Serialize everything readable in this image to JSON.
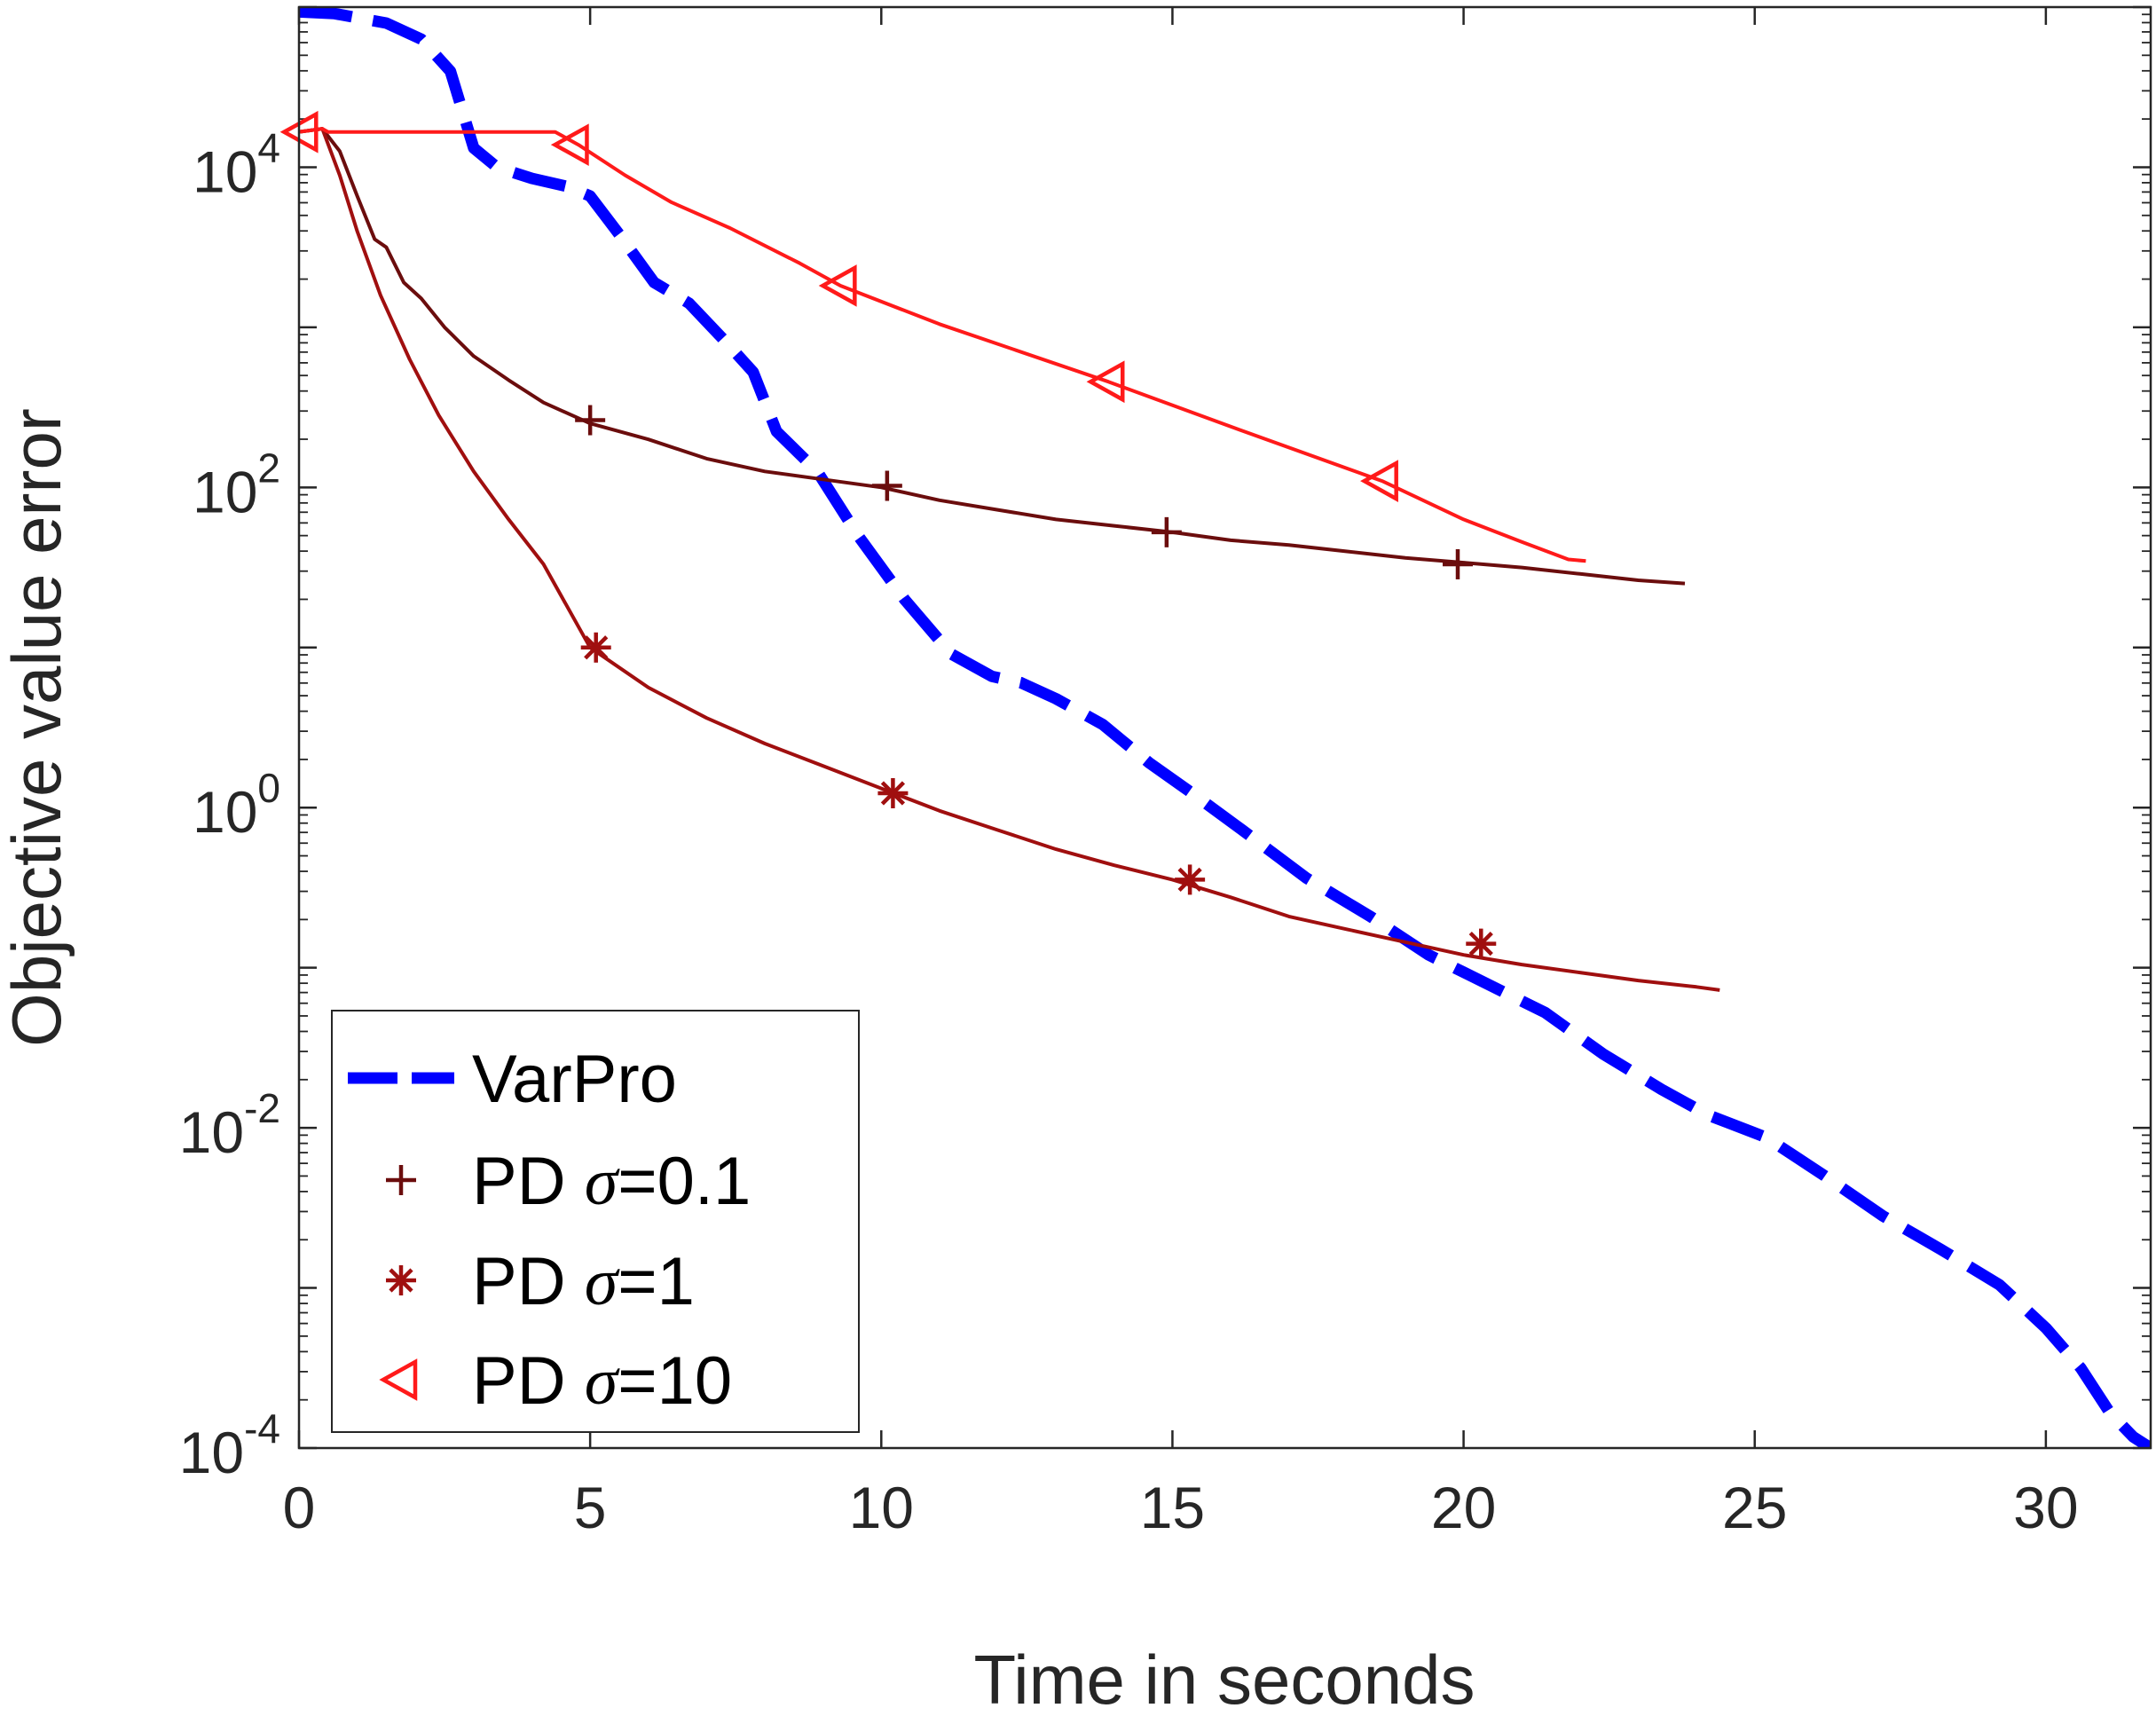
{
  "chart_data": {
    "type": "line",
    "title": "",
    "xlabel": "Time in seconds",
    "ylabel": "Objective value error",
    "xlim": [
      0,
      31.8
    ],
    "ylim_log10": [
      -4,
      5
    ],
    "y_scale": "log",
    "x_ticks": [
      0,
      5,
      10,
      15,
      20,
      25,
      30
    ],
    "x_tick_labels": [
      "0",
      "5",
      "10",
      "15",
      "20",
      "25",
      "30"
    ],
    "y_ticks": [
      {
        "base": "10",
        "exp": "4",
        "value": 4
      },
      {
        "base": "10",
        "exp": "2",
        "value": 2
      },
      {
        "base": "10",
        "exp": "0",
        "value": 0
      },
      {
        "base": "10",
        "exp": "-2",
        "value": -2
      },
      {
        "base": "10",
        "exp": "-4",
        "value": -4
      }
    ],
    "legend_location": "bottom-left",
    "series": [
      {
        "name": "VarPro",
        "color": "#0000ff",
        "style": "dashed",
        "marker": "none",
        "label_prefix": "VarPro",
        "label_sigma": "",
        "label_suffix": "",
        "points": [
          [
            0,
            4.97
          ],
          [
            0.6,
            4.96
          ],
          [
            1.5,
            4.9
          ],
          [
            2.1,
            4.8
          ],
          [
            2.6,
            4.6
          ],
          [
            3,
            4.12
          ],
          [
            3.4,
            4.0
          ],
          [
            4.0,
            3.93
          ],
          [
            4.6,
            3.88
          ],
          [
            5,
            3.82
          ],
          [
            5.5,
            3.58
          ],
          [
            6.1,
            3.28
          ],
          [
            6.7,
            3.15
          ],
          [
            7.3,
            2.92
          ],
          [
            7.8,
            2.72
          ],
          [
            8.2,
            2.35
          ],
          [
            8.9,
            2.1
          ],
          [
            9.6,
            1.7
          ],
          [
            10.4,
            1.3
          ],
          [
            11.2,
            0.96
          ],
          [
            11.9,
            0.82
          ],
          [
            12.4,
            0.78
          ],
          [
            13.0,
            0.68
          ],
          [
            13.8,
            0.52
          ],
          [
            14.6,
            0.28
          ],
          [
            15.3,
            0.1
          ],
          [
            16.2,
            -0.14
          ],
          [
            17.3,
            -0.44
          ],
          [
            18.4,
            -0.68
          ],
          [
            19.4,
            -0.92
          ],
          [
            20.4,
            -1.1
          ],
          [
            21.4,
            -1.28
          ],
          [
            22.4,
            -1.54
          ],
          [
            23.4,
            -1.76
          ],
          [
            24.2,
            -1.92
          ],
          [
            25.2,
            -2.06
          ],
          [
            26.2,
            -2.3
          ],
          [
            27.2,
            -2.55
          ],
          [
            28.2,
            -2.76
          ],
          [
            29.2,
            -2.98
          ],
          [
            30.0,
            -3.25
          ],
          [
            30.6,
            -3.5
          ],
          [
            31.1,
            -3.78
          ],
          [
            31.5,
            -3.93
          ],
          [
            31.8,
            -4.0
          ]
        ]
      },
      {
        "name": "PD σ=0.1",
        "color": "#6b0d0d",
        "style": "solid",
        "marker": "plus",
        "label_prefix": "PD ",
        "label_sigma": "σ",
        "label_suffix": "=0.1",
        "points": [
          [
            0,
            4.22
          ],
          [
            0.4,
            4.24
          ],
          [
            0.7,
            4.1
          ],
          [
            1.0,
            3.82
          ],
          [
            1.3,
            3.55
          ],
          [
            1.5,
            3.5
          ],
          [
            1.8,
            3.28
          ],
          [
            2.1,
            3.18
          ],
          [
            2.5,
            3.0
          ],
          [
            3.0,
            2.82
          ],
          [
            3.6,
            2.67
          ],
          [
            4.2,
            2.53
          ],
          [
            5,
            2.4
          ],
          [
            6,
            2.3
          ],
          [
            7,
            2.18
          ],
          [
            8,
            2.1
          ],
          [
            9,
            2.05
          ],
          [
            10,
            2.0
          ],
          [
            11,
            1.92
          ],
          [
            12,
            1.86
          ],
          [
            13,
            1.8
          ],
          [
            14,
            1.76
          ],
          [
            15,
            1.72
          ],
          [
            16,
            1.67
          ],
          [
            17,
            1.64
          ],
          [
            18,
            1.6
          ],
          [
            19,
            1.56
          ],
          [
            20,
            1.53
          ],
          [
            21,
            1.5
          ],
          [
            22,
            1.46
          ],
          [
            23,
            1.42
          ],
          [
            23.8,
            1.4
          ]
        ],
        "markers": [
          [
            5.0,
            2.42
          ],
          [
            10.1,
            2.01
          ],
          [
            14.9,
            1.72
          ],
          [
            19.9,
            1.52
          ]
        ]
      },
      {
        "name": "PD σ=1",
        "color": "#a00f0f",
        "style": "solid",
        "marker": "asterisk",
        "label_prefix": "PD ",
        "label_sigma": "σ",
        "label_suffix": "=1",
        "points": [
          [
            0,
            4.22
          ],
          [
            0.4,
            4.24
          ],
          [
            0.7,
            3.95
          ],
          [
            1.0,
            3.6
          ],
          [
            1.4,
            3.2
          ],
          [
            1.9,
            2.8
          ],
          [
            2.4,
            2.45
          ],
          [
            3.0,
            2.1
          ],
          [
            3.6,
            1.8
          ],
          [
            4.2,
            1.52
          ],
          [
            5.0,
            1.0
          ],
          [
            6,
            0.75
          ],
          [
            7,
            0.56
          ],
          [
            8,
            0.4
          ],
          [
            9,
            0.26
          ],
          [
            10,
            0.12
          ],
          [
            11,
            -0.02
          ],
          [
            12,
            -0.14
          ],
          [
            13,
            -0.26
          ],
          [
            14,
            -0.36
          ],
          [
            15,
            -0.45
          ],
          [
            16,
            -0.56
          ],
          [
            17,
            -0.68
          ],
          [
            18,
            -0.76
          ],
          [
            19,
            -0.84
          ],
          [
            20,
            -0.92
          ],
          [
            21,
            -0.98
          ],
          [
            22,
            -1.03
          ],
          [
            23,
            -1.08
          ],
          [
            24,
            -1.12
          ],
          [
            24.4,
            -1.14
          ]
        ],
        "markers": [
          [
            5.1,
            1.0
          ],
          [
            10.2,
            0.09
          ],
          [
            15.3,
            -0.45
          ],
          [
            20.3,
            -0.85
          ]
        ]
      },
      {
        "name": "PD σ=10",
        "color": "#ff1a1a",
        "style": "solid",
        "marker": "triangle-left",
        "label_prefix": "PD ",
        "label_sigma": "σ",
        "label_suffix": "=10",
        "points": [
          [
            0,
            4.22
          ],
          [
            0.4,
            4.24
          ],
          [
            0.5,
            4.22
          ],
          [
            4.4,
            4.22
          ],
          [
            4.8,
            4.14
          ],
          [
            5.6,
            3.95
          ],
          [
            6.4,
            3.78
          ],
          [
            7.4,
            3.62
          ],
          [
            8.6,
            3.4
          ],
          [
            9.3,
            3.26
          ],
          [
            11.0,
            3.02
          ],
          [
            13.9,
            2.66
          ],
          [
            16.0,
            2.38
          ],
          [
            18.6,
            2.04
          ],
          [
            20.0,
            1.8
          ],
          [
            21.0,
            1.66
          ],
          [
            21.8,
            1.55
          ],
          [
            22.1,
            1.54
          ]
        ],
        "markers": [
          [
            0.05,
            4.22
          ],
          [
            4.7,
            4.14
          ],
          [
            9.3,
            3.26
          ],
          [
            13.9,
            2.66
          ],
          [
            18.6,
            2.04
          ]
        ]
      }
    ]
  }
}
